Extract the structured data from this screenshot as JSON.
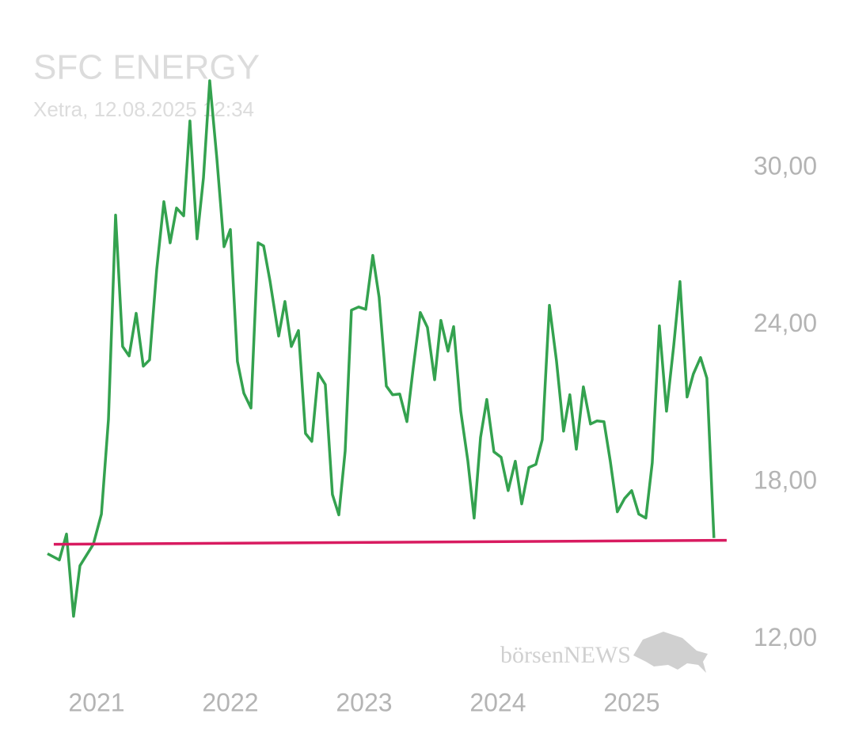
{
  "chart_data": {
    "type": "line",
    "title": "SFC ENERGY",
    "subtitle": "Xetra, 12.08.2025 12:34",
    "watermark": "börsenNEWS",
    "xlim": [
      2020.5,
      2025.9
    ],
    "xticks": [
      2021,
      2022,
      2023,
      2024,
      2025
    ],
    "ylim": [
      10.5,
      33.5
    ],
    "yticks": [
      {
        "value": 12,
        "label": "12,00"
      },
      {
        "value": 18,
        "label": "18,00"
      },
      {
        "value": 24,
        "label": "24,00"
      },
      {
        "value": 30,
        "label": "30,00"
      }
    ],
    "grid": false,
    "series": [
      {
        "color": "#34a24f",
        "x": [
          2020.633,
          2020.722,
          2020.775,
          2020.828,
          2020.876,
          2020.976,
          2021.036,
          2021.089,
          2021.142,
          2021.195,
          2021.243,
          2021.296,
          2021.349,
          2021.396,
          2021.45,
          2021.503,
          2021.55,
          2021.598,
          2021.651,
          2021.698,
          2021.751,
          2021.799,
          2021.846,
          2021.899,
          2021.953,
          2022.0,
          2022.053,
          2022.101,
          2022.154,
          2022.207,
          2022.249,
          2022.296,
          2022.361,
          2022.408,
          2022.456,
          2022.509,
          2022.562,
          2022.609,
          2022.657,
          2022.71,
          2022.763,
          2022.811,
          2022.858,
          2022.905,
          2022.959,
          2023.012,
          2023.065,
          2023.112,
          2023.166,
          2023.213,
          2023.266,
          2023.32,
          2023.367,
          2023.42,
          2023.473,
          2023.527,
          2023.574,
          2023.627,
          2023.669,
          2023.722,
          2023.775,
          2023.822,
          2023.87,
          2023.917,
          2023.97,
          2024.024,
          2024.077,
          2024.13,
          2024.178,
          2024.231,
          2024.284,
          2024.331,
          2024.385,
          2024.438,
          2024.491,
          2024.538,
          2024.586,
          2024.639,
          2024.692,
          2024.74,
          2024.793,
          2024.84,
          2024.893,
          2024.947,
          2025.0,
          2025.053,
          2025.106,
          2025.154,
          2025.207,
          2025.26,
          2025.314,
          2025.361,
          2025.414,
          2025.461,
          2025.515,
          2025.562,
          2025.615
        ],
        "values": [
          15.26,
          15.02,
          16.01,
          12.87,
          14.8,
          15.62,
          16.77,
          20.39,
          28.19,
          23.17,
          22.81,
          24.44,
          22.42,
          22.66,
          26.13,
          28.7,
          27.13,
          28.46,
          28.16,
          31.78,
          27.28,
          29.61,
          33.32,
          30.36,
          26.98,
          27.64,
          22.6,
          21.39,
          20.82,
          27.13,
          27.01,
          25.68,
          23.57,
          24.89,
          23.17,
          23.78,
          19.85,
          19.55,
          22.15,
          21.72,
          17.52,
          16.74,
          19.18,
          24.56,
          24.68,
          24.59,
          26.65,
          25.05,
          21.66,
          21.33,
          21.36,
          20.3,
          22.36,
          24.47,
          23.9,
          21.9,
          24.17,
          22.99,
          23.93,
          20.7,
          18.82,
          16.62,
          19.7,
          21.15,
          19.15,
          18.94,
          17.67,
          18.79,
          17.16,
          18.55,
          18.67,
          19.61,
          24.74,
          22.63,
          19.94,
          21.33,
          19.25,
          21.63,
          20.21,
          20.33,
          20.3,
          18.79,
          16.86,
          17.37,
          17.67,
          16.77,
          16.62,
          18.73,
          23.96,
          20.7,
          23.2,
          25.65,
          21.24,
          22.12,
          22.75,
          21.96,
          15.86
        ]
      },
      {
        "color": "#d81b60",
        "x": [
          2020.68,
          2025.71
        ],
        "values": [
          15.62,
          15.77
        ]
      }
    ]
  }
}
